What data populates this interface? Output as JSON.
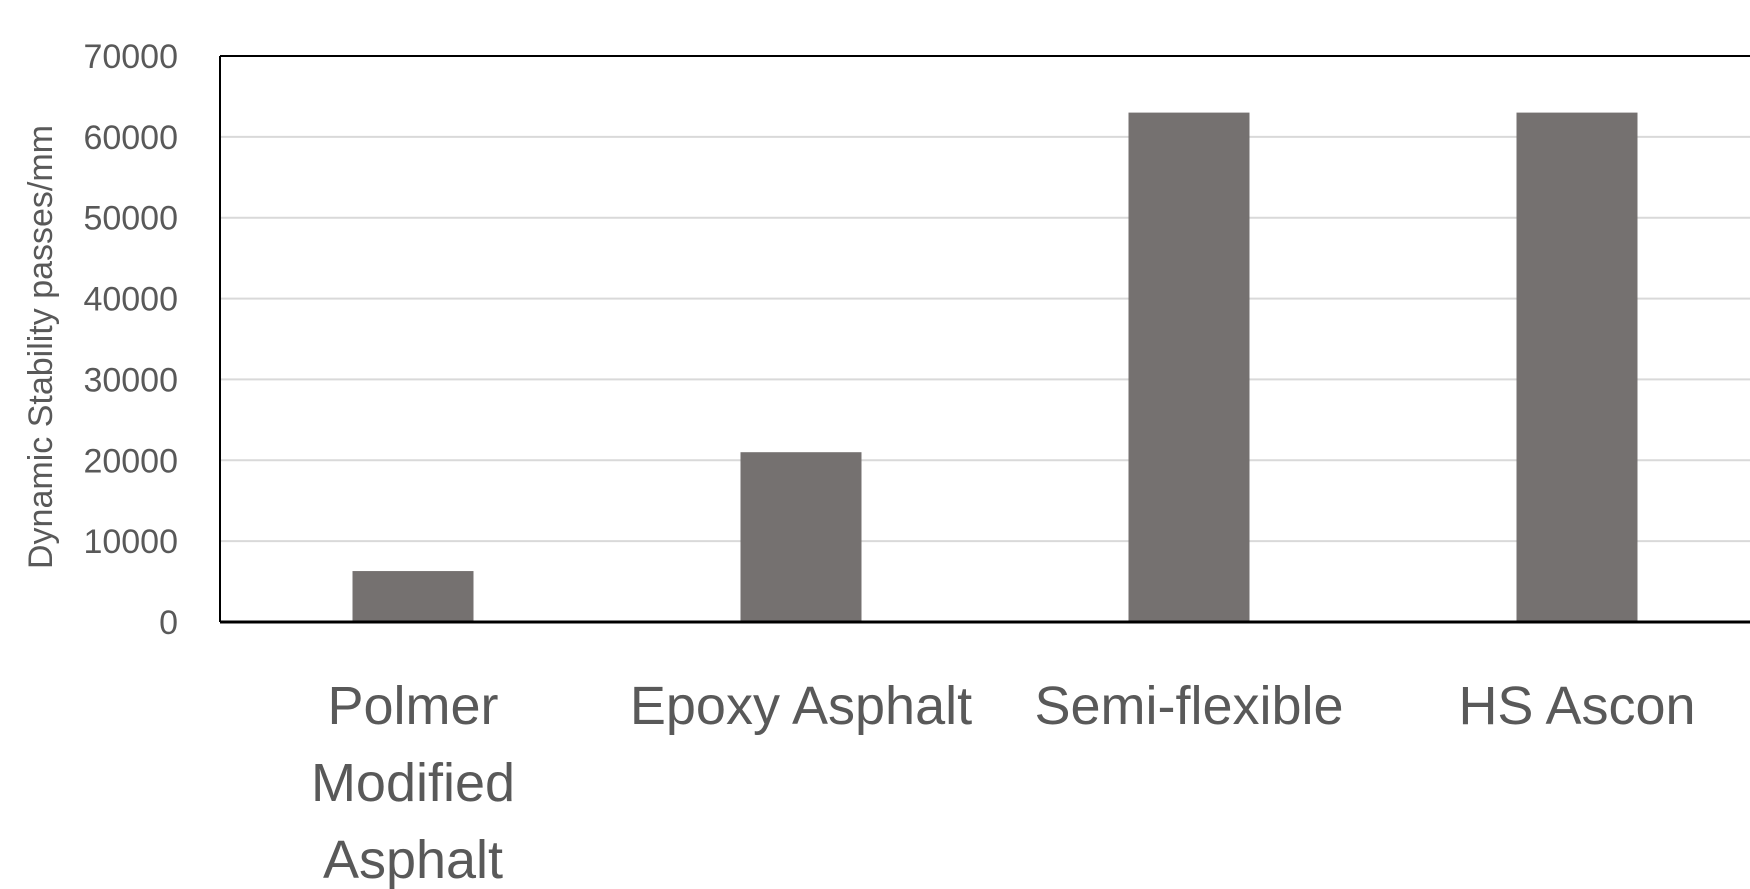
{
  "chart_data": {
    "type": "bar",
    "title": "",
    "xlabel": "",
    "ylabel": "Dynamic Stability passes/mm",
    "categories": [
      "Polmer Modified Asphalt",
      "Epoxy Asphalt",
      "Semi-flexible",
      "HS Ascon"
    ],
    "category_label_lines": [
      [
        "Polmer",
        "Modified",
        "Asphalt"
      ],
      [
        "Epoxy Asphalt"
      ],
      [
        "Semi-flexible"
      ],
      [
        "HS Ascon"
      ]
    ],
    "values": [
      6300,
      21000,
      63000,
      63000
    ],
    "ylim": [
      0,
      70000
    ],
    "yticks": [
      0,
      10000,
      20000,
      30000,
      40000,
      50000,
      60000,
      70000
    ],
    "ytick_labels": [
      "0",
      "10000",
      "20000",
      "30000",
      "40000",
      "50000",
      "60000",
      "70000"
    ],
    "grid": true,
    "legend": "none",
    "colors": {
      "bar": "#757170",
      "grid": "#d9d9d9",
      "axis": "#000000",
      "text": "#595959"
    }
  }
}
